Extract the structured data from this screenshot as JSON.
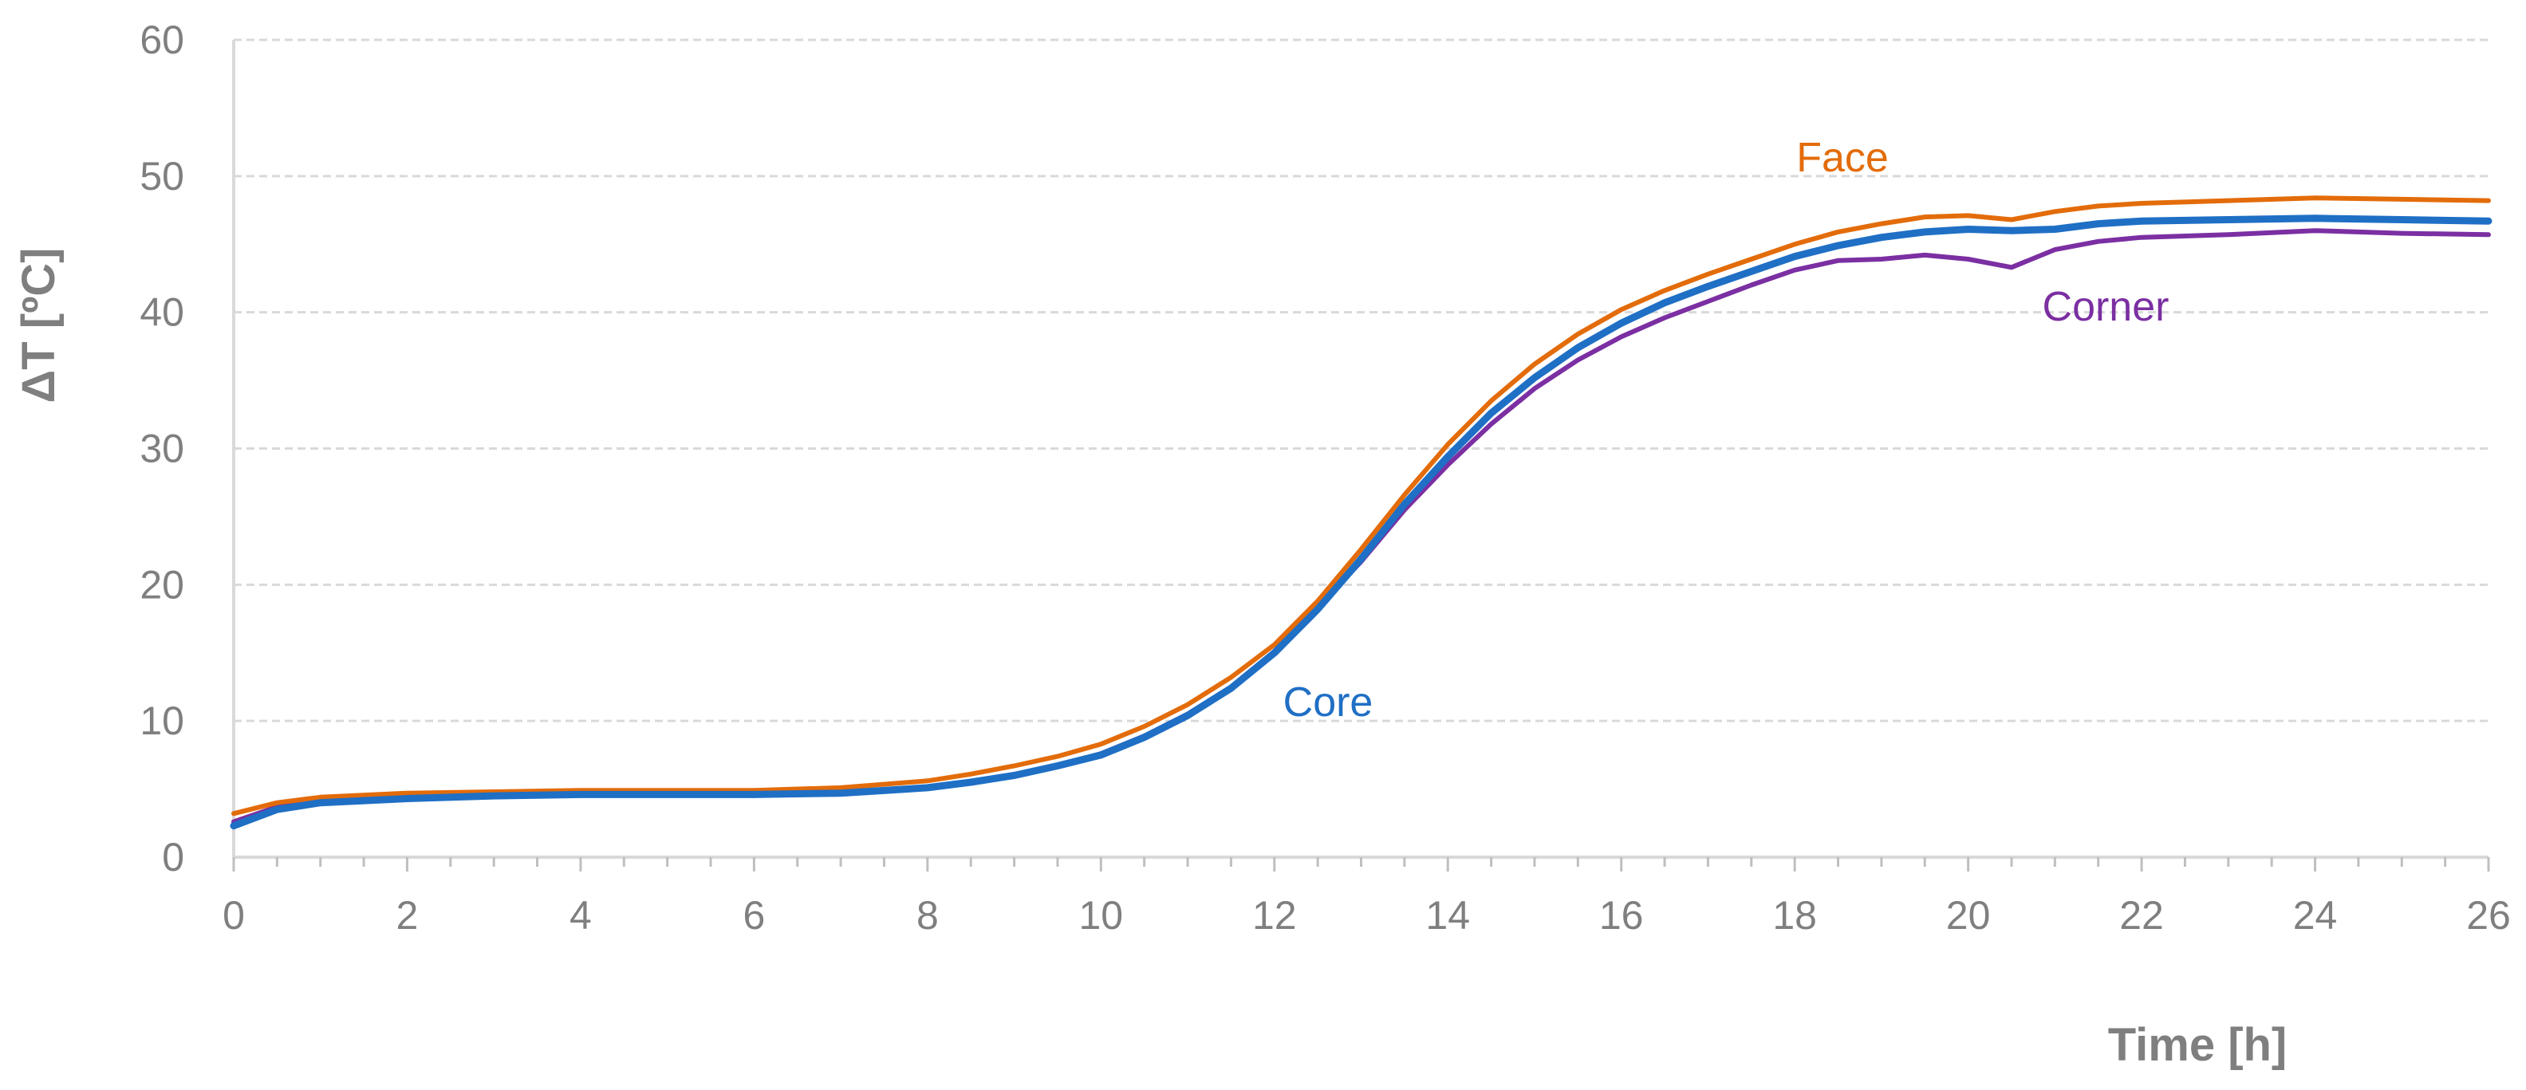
{
  "chart_data": {
    "type": "line",
    "title": "",
    "xlabel": "Time [h]",
    "ylabel": "ΔT [ºC]",
    "xlim": [
      0,
      26
    ],
    "ylim": [
      0,
      60
    ],
    "xticks": [
      0,
      2,
      4,
      6,
      8,
      10,
      12,
      14,
      16,
      18,
      20,
      22,
      24,
      26
    ],
    "yticks": [
      0,
      10,
      20,
      30,
      40,
      50,
      60
    ],
    "grid": "horizontal dashed",
    "legend": "inline labels",
    "series": [
      {
        "name": "Face",
        "color": "#e36c0a",
        "x": [
          0,
          0.5,
          1,
          2,
          3,
          4,
          5,
          6,
          7,
          8,
          8.5,
          9,
          9.5,
          10,
          10.5,
          11,
          11.5,
          12,
          12.5,
          13,
          13.5,
          14,
          14.5,
          15,
          15.5,
          16,
          16.5,
          17,
          17.5,
          18,
          18.5,
          19,
          19.5,
          20,
          20.5,
          21,
          21.5,
          22,
          23,
          24,
          25,
          26
        ],
        "y": [
          3.2,
          4.0,
          4.4,
          4.7,
          4.8,
          4.9,
          4.9,
          4.9,
          5.1,
          5.6,
          6.1,
          6.7,
          7.4,
          8.3,
          9.6,
          11.2,
          13.2,
          15.6,
          18.8,
          22.6,
          26.6,
          30.3,
          33.5,
          36.2,
          38.4,
          40.2,
          41.6,
          42.8,
          43.9,
          45.0,
          45.9,
          46.5,
          47.0,
          47.1,
          46.8,
          47.4,
          47.8,
          48.0,
          48.2,
          48.4,
          48.3,
          48.2
        ]
      },
      {
        "name": "Core",
        "color": "#1f6fc5",
        "x": [
          0,
          0.5,
          1,
          2,
          3,
          4,
          5,
          6,
          7,
          8,
          8.5,
          9,
          9.5,
          10,
          10.5,
          11,
          11.5,
          12,
          12.5,
          13,
          13.5,
          14,
          14.5,
          15,
          15.5,
          16,
          16.5,
          17,
          17.5,
          18,
          18.5,
          19,
          19.5,
          20,
          20.5,
          21,
          21.5,
          22,
          23,
          24,
          25,
          26
        ],
        "y": [
          2.3,
          3.5,
          4.0,
          4.3,
          4.5,
          4.6,
          4.6,
          4.6,
          4.7,
          5.1,
          5.5,
          6.0,
          6.7,
          7.5,
          8.8,
          10.4,
          12.4,
          15.0,
          18.2,
          21.9,
          25.9,
          29.4,
          32.6,
          35.2,
          37.4,
          39.2,
          40.7,
          41.9,
          43.0,
          44.1,
          44.9,
          45.5,
          45.9,
          46.1,
          46.0,
          46.1,
          46.5,
          46.7,
          46.8,
          46.9,
          46.8,
          46.7
        ]
      },
      {
        "name": "Corner",
        "color": "#7b2fa2",
        "x": [
          0,
          0.5,
          1,
          2,
          3,
          4,
          5,
          6,
          7,
          8,
          8.5,
          9,
          9.5,
          10,
          10.5,
          11,
          11.5,
          12,
          12.5,
          13,
          13.5,
          14,
          14.5,
          15,
          15.5,
          16,
          16.5,
          17,
          17.5,
          18,
          18.5,
          19,
          19.5,
          20,
          20.5,
          21,
          21.5,
          22,
          23,
          24,
          25,
          26
        ],
        "y": [
          2.6,
          3.7,
          4.1,
          4.4,
          4.5,
          4.6,
          4.6,
          4.6,
          4.7,
          5.1,
          5.5,
          6.0,
          6.7,
          7.6,
          8.9,
          10.5,
          12.5,
          15.1,
          18.3,
          21.7,
          25.5,
          28.8,
          31.8,
          34.4,
          36.5,
          38.2,
          39.6,
          40.8,
          42.0,
          43.1,
          43.8,
          43.9,
          44.2,
          43.9,
          43.3,
          44.6,
          45.2,
          45.5,
          45.7,
          46.0,
          45.8,
          45.7
        ]
      }
    ]
  }
}
